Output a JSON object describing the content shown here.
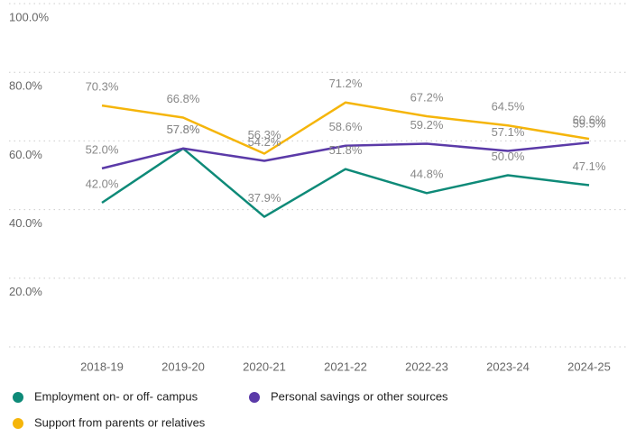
{
  "chart_data": {
    "type": "line",
    "categories": [
      "2018-19",
      "2019-20",
      "2020-21",
      "2021-22",
      "2022-23",
      "2023-24",
      "2024-25"
    ],
    "series": [
      {
        "name": "Employment on- or off- campus",
        "color": "#0e8a78",
        "values": [
          42.0,
          57.8,
          37.9,
          51.8,
          44.8,
          50.0,
          47.1
        ],
        "value_labels": [
          "42.0%",
          "57.8%",
          "37.9%",
          "51.8%",
          "44.8%",
          "50.0%",
          "47.1%"
        ]
      },
      {
        "name": "Personal savings or other sources",
        "color": "#5b3aa8",
        "values": [
          52.0,
          57.8,
          54.2,
          58.6,
          59.2,
          57.1,
          59.5
        ],
        "value_labels": [
          "52.0%",
          "57.8%",
          "54.2%",
          "58.6%",
          "59.2%",
          "57.1%",
          "59.5%"
        ]
      },
      {
        "name": "Support from parents or relatives",
        "color": "#f5b50a",
        "values": [
          70.3,
          66.8,
          56.3,
          71.2,
          67.2,
          64.5,
          60.6
        ],
        "value_labels": [
          "70.3%",
          "66.8%",
          "56.3%",
          "71.2%",
          "67.2%",
          "64.5%",
          "60.6%"
        ]
      }
    ],
    "ylim": [
      0,
      100
    ],
    "yticks": [
      {
        "value": 20,
        "label": "20.0%"
      },
      {
        "value": 40,
        "label": "40.0%"
      },
      {
        "value": 60,
        "label": "60.0%"
      },
      {
        "value": 80,
        "label": "80.0%"
      },
      {
        "value": 100,
        "label": "100.0%"
      }
    ],
    "grid": true
  }
}
